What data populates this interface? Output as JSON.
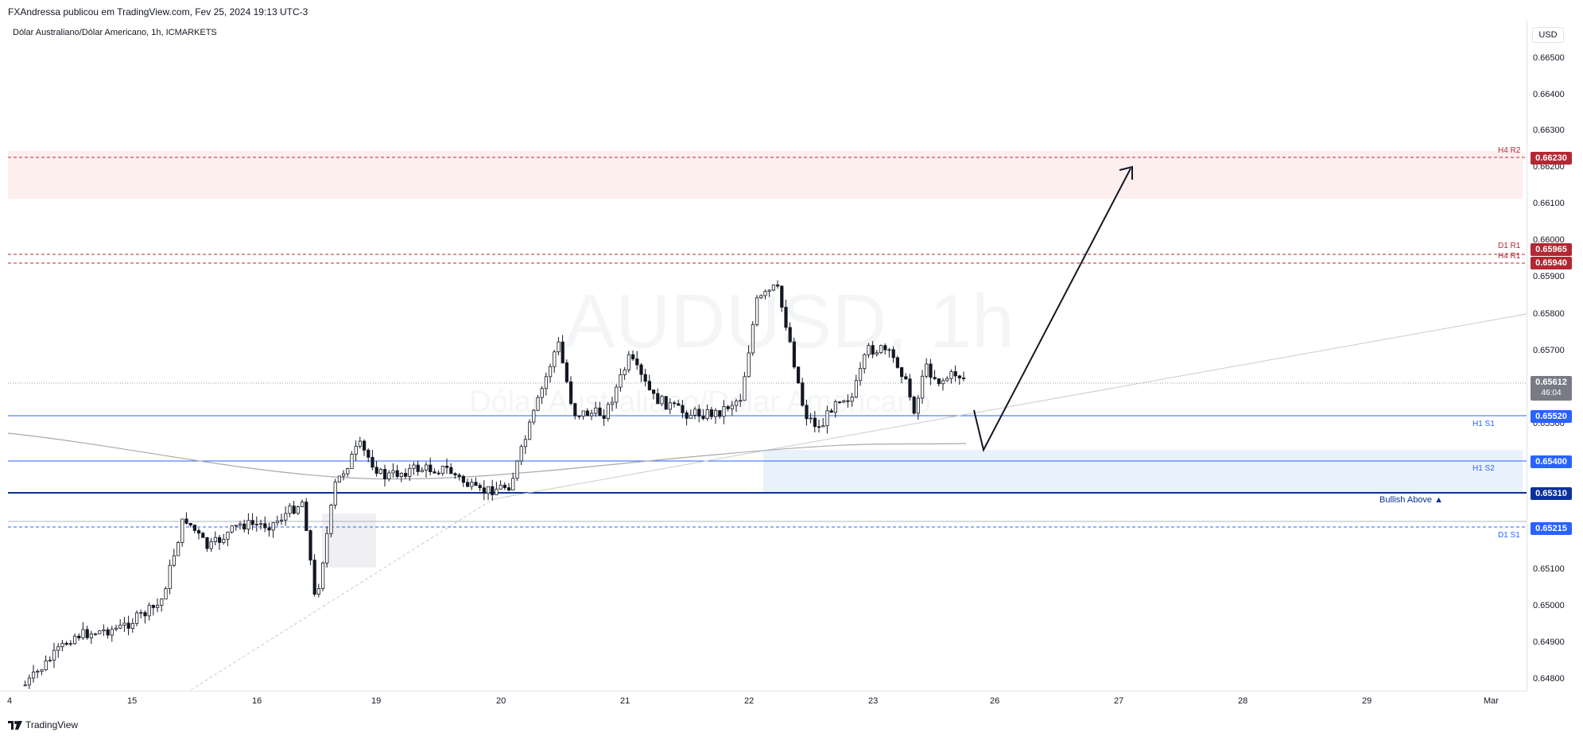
{
  "header": {
    "publisher": "FXAndressa publicou em TradingView.com, Fev 25, 2024 19:13 UTC-3"
  },
  "chart": {
    "title": "Dólar Australiano/Dólar Americano, 1h, ICMARKETS",
    "watermark_symbol": "AUDUSD, 1h",
    "watermark_desc": "Dólar Australiano/Dólar Americano",
    "currency": "USD"
  },
  "price_axis": {
    "ticks": [
      "0.66500",
      "0.66400",
      "0.66300",
      "0.66200",
      "0.66100",
      "0.66000",
      "0.65900",
      "0.65800",
      "0.65700",
      "0.65500",
      "0.65100",
      "0.65000",
      "0.64900",
      "0.64800"
    ]
  },
  "levels": [
    {
      "name": "H4 R2",
      "price": "0.66230",
      "color": "#b22833"
    },
    {
      "name": "D1 R1",
      "price": "0.65965",
      "color": "#b22833"
    },
    {
      "name": "H4 R1",
      "price": "0.65940",
      "color": "#b22833"
    },
    {
      "name": "H1 S1",
      "price": "0.65520",
      "color": "#2962ff"
    },
    {
      "name": "H1 S2",
      "price": "0.65400",
      "color": "#2962ff"
    },
    {
      "name": "",
      "price": "0.65310",
      "color": "#0c3299"
    },
    {
      "name": "D1 S1",
      "price": "0.65215",
      "color": "#2962ff"
    }
  ],
  "current_price": {
    "price": "0.65612",
    "countdown": "46:04"
  },
  "annotation": {
    "bullish_label": "Bullish Above ▲"
  },
  "time_axis": {
    "labels": [
      "4",
      "15",
      "16",
      "19",
      "20",
      "21",
      "22",
      "23",
      "26",
      "27",
      "28",
      "29",
      "Mar"
    ]
  },
  "footer": {
    "brand": "TradingView"
  },
  "colors": {
    "candle": "#131722",
    "resistance": "#b22833",
    "support": "#2962ff",
    "bullish": "#0c3299"
  }
}
